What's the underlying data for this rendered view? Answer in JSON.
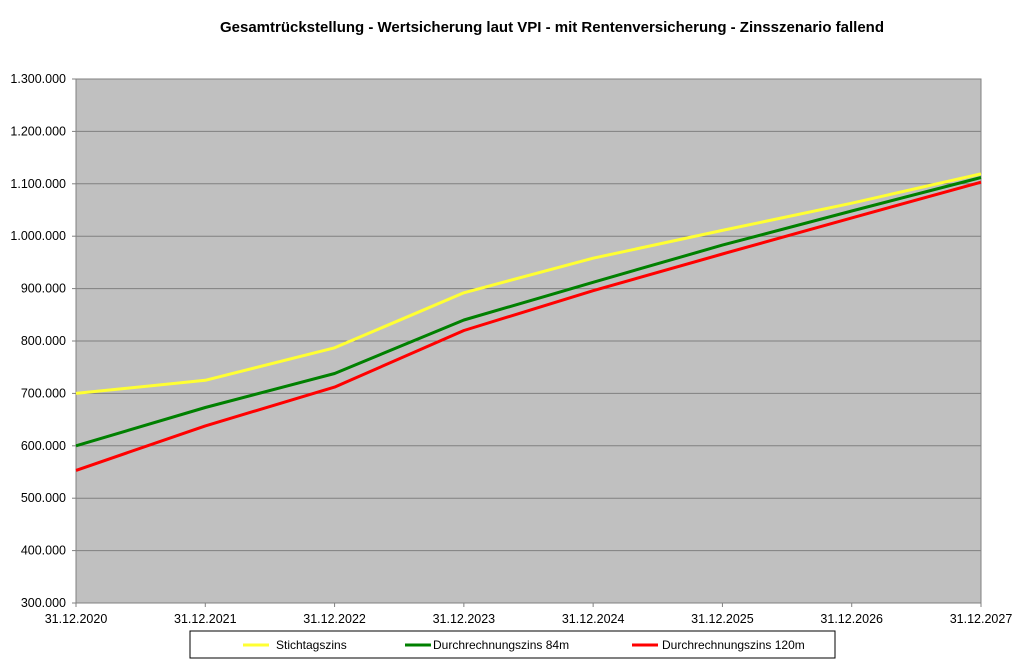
{
  "chart_data": {
    "type": "line",
    "title": "Gesamtrückstellung - Wertsicherung laut VPI - mit Rentenversicherung - Zinsszenario fallend",
    "xlabel": "",
    "ylabel": "",
    "categories": [
      "31.12.2020",
      "31.12.2021",
      "31.12.2022",
      "31.12.2023",
      "31.12.2024",
      "31.12.2025",
      "31.12.2026",
      "31.12.2027"
    ],
    "ylim": [
      300000,
      1300000
    ],
    "yticks": [
      300000,
      400000,
      500000,
      600000,
      700000,
      800000,
      900000,
      1000000,
      1100000,
      1200000,
      1300000
    ],
    "ytick_labels": [
      "300.000",
      "400.000",
      "500.000",
      "600.000",
      "700.000",
      "800.000",
      "900.000",
      "1.000.000",
      "1.100.000",
      "1.200.000",
      "1.300.000"
    ],
    "grid": true,
    "plot_background": "#c0c0c0",
    "legend_position": "bottom",
    "series": [
      {
        "name": "Stichtagszins",
        "color": "#ffff33",
        "values": [
          700000,
          725000,
          787000,
          892000,
          958000,
          1011000,
          1063000,
          1119000
        ]
      },
      {
        "name": "Durchrechnungszins 84m",
        "color": "#008000",
        "values": [
          600000,
          673000,
          738000,
          840000,
          912000,
          983000,
          1048000,
          1112000
        ]
      },
      {
        "name": "Durchrechnungszins 120m",
        "color": "#ff0000",
        "values": [
          553000,
          638000,
          712000,
          820000,
          896000,
          966000,
          1035000,
          1103000
        ]
      }
    ]
  }
}
